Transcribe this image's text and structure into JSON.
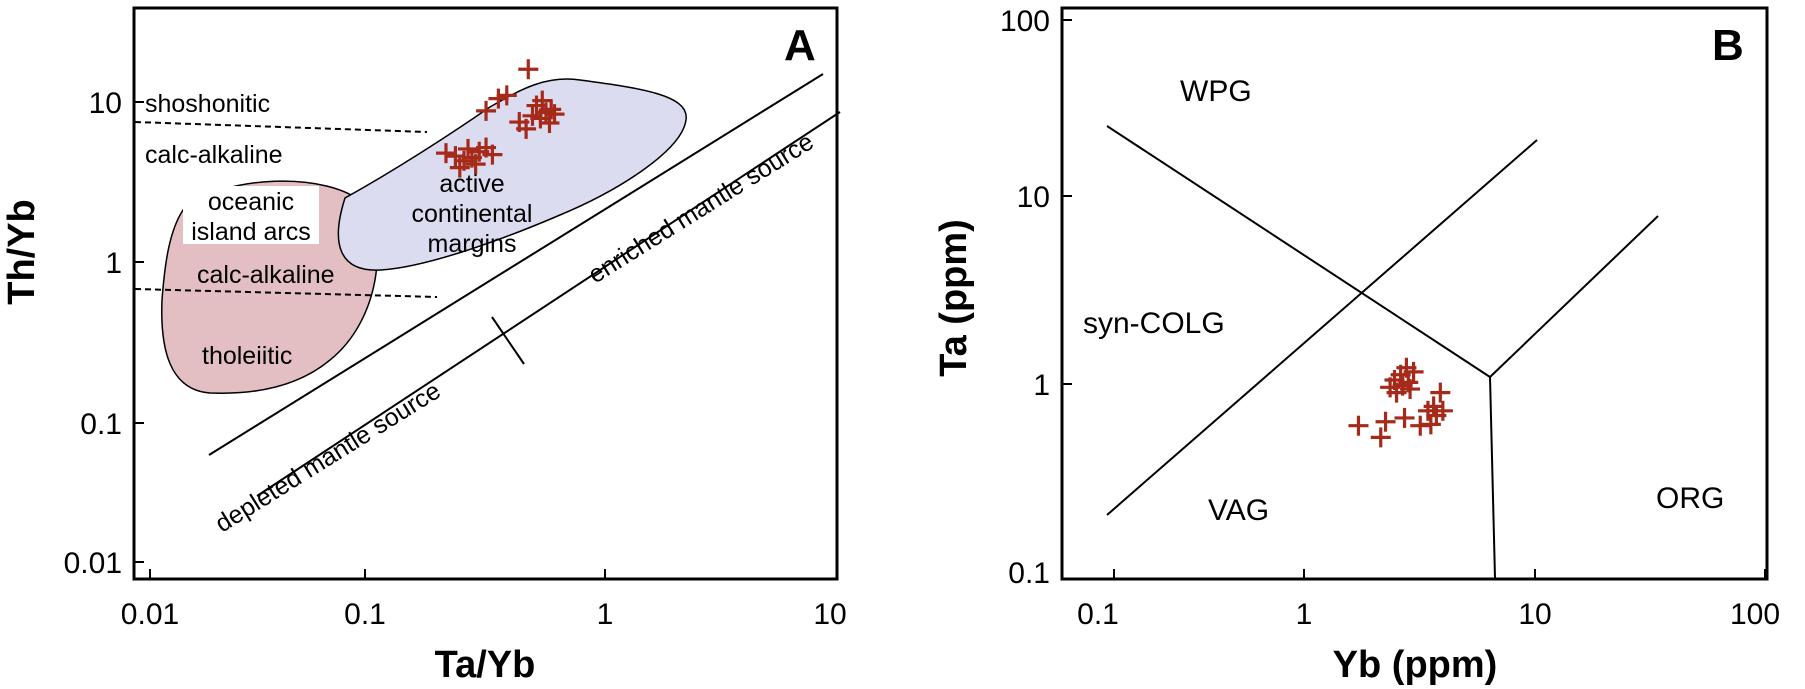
{
  "chart_data": [
    {
      "type": "scatter",
      "panel_label": "A",
      "xlabel": "Ta/Yb",
      "ylabel": "Th/Yb",
      "xscale": "log",
      "yscale": "log",
      "xlim": [
        0.007,
        10
      ],
      "ylim": [
        0.007,
        40
      ],
      "xticks": [
        "0.01",
        "0.1",
        "1",
        "10"
      ],
      "yticks": [
        "0.01",
        "0.1",
        "1",
        "10"
      ],
      "grid": false,
      "legend": "none",
      "marker_color": "#a52a1a",
      "region_colors": {
        "oceanic_island_arcs": "#e3bec2",
        "active_continental_margins": "#dcdcf0"
      },
      "labels": {
        "shoshonitic": "shoshonitic",
        "calc_alkaline_upper": "calc-alkaline",
        "oceanic_1": "oceanic",
        "oceanic_2": "island arcs",
        "active_1": "active",
        "active_2": "continental",
        "active_3": "margins",
        "calc_alkaline_lower": "calc-alkaline",
        "tholeiitic": "tholeiitic",
        "enriched": "enriched mantle source",
        "depleted": "depleted mantle source"
      },
      "points": [
        [
          0.2,
          4.8
        ],
        [
          0.22,
          4.6
        ],
        [
          0.24,
          4.3
        ],
        [
          0.25,
          5.1
        ],
        [
          0.26,
          4.5
        ],
        [
          0.28,
          4.9
        ],
        [
          0.3,
          5.2
        ],
        [
          0.27,
          4.1
        ],
        [
          0.32,
          4.7
        ],
        [
          0.23,
          3.9
        ],
        [
          0.3,
          8.8
        ],
        [
          0.34,
          10.5
        ],
        [
          0.37,
          11.0
        ],
        [
          0.46,
          16.0
        ],
        [
          0.42,
          7.5
        ],
        [
          0.45,
          6.8
        ],
        [
          0.48,
          8.2
        ],
        [
          0.5,
          9.5
        ],
        [
          0.52,
          7.9
        ],
        [
          0.55,
          8.6
        ],
        [
          0.53,
          10.2
        ],
        [
          0.58,
          9.0
        ],
        [
          0.6,
          8.4
        ],
        [
          0.57,
          7.4
        ]
      ]
    },
    {
      "type": "scatter",
      "panel_label": "B",
      "xlabel": "Yb (ppm)",
      "ylabel": "Ta (ppm)",
      "xscale": "log",
      "yscale": "log",
      "xlim": [
        0.07,
        100
      ],
      "ylim": [
        0.1,
        100
      ],
      "xticks": [
        "0.1",
        "1",
        "10",
        "100"
      ],
      "yticks": [
        "0.1",
        "1",
        "10",
        "100"
      ],
      "grid": false,
      "legend": "none",
      "marker_color": "#a52a1a",
      "fields": {
        "wpg": "WPG",
        "syn_colg": "syn-COLG",
        "vag": "VAG",
        "org": "ORG"
      },
      "points": [
        [
          1.45,
          0.6
        ],
        [
          1.85,
          0.52
        ],
        [
          1.95,
          0.63
        ],
        [
          2.05,
          0.96
        ],
        [
          2.15,
          1.05
        ],
        [
          2.2,
          0.9
        ],
        [
          2.3,
          1.12
        ],
        [
          2.35,
          0.98
        ],
        [
          2.4,
          0.66
        ],
        [
          2.45,
          1.22
        ],
        [
          2.5,
          1.02
        ],
        [
          2.55,
          0.94
        ],
        [
          2.65,
          1.16
        ],
        [
          2.85,
          0.6
        ],
        [
          3.1,
          0.72
        ],
        [
          3.2,
          0.61
        ],
        [
          3.3,
          0.76
        ],
        [
          3.4,
          0.68
        ],
        [
          3.55,
          0.9
        ],
        [
          3.65,
          0.72
        ]
      ]
    }
  ]
}
